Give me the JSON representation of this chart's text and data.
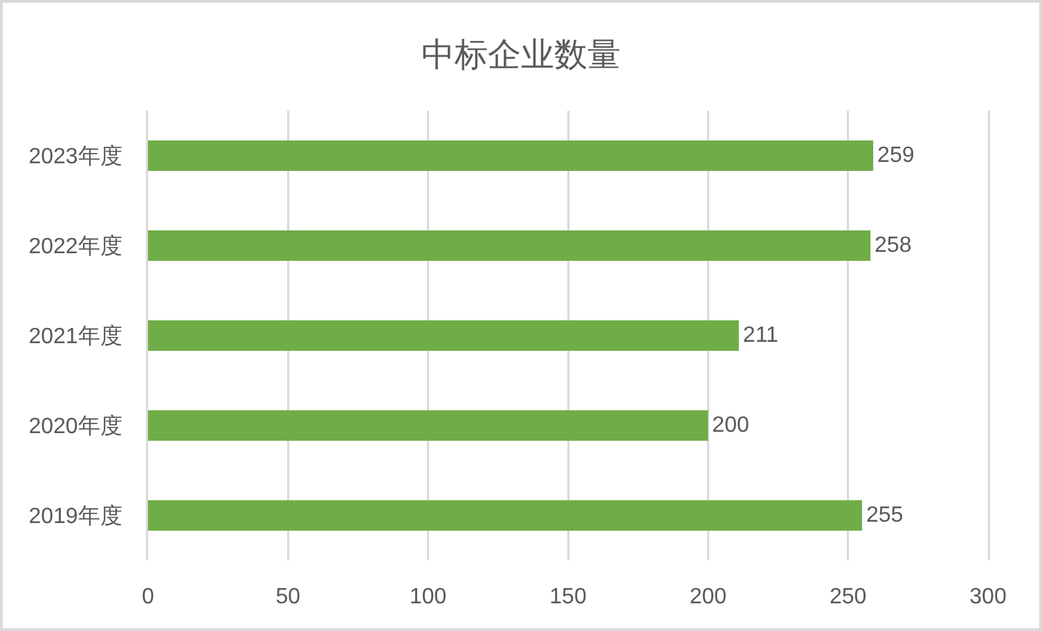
{
  "chart_data": {
    "type": "bar",
    "title": "中标企业数量",
    "orientation": "horizontal",
    "categories": [
      "2023年度",
      "2022年度",
      "2021年度",
      "2020年度",
      "2019年度"
    ],
    "values": [
      259,
      258,
      211,
      200,
      255
    ],
    "color": "#70ad47",
    "xlim": [
      0,
      300
    ],
    "xticks": [
      0,
      50,
      100,
      150,
      200,
      250,
      300
    ],
    "grid": "x",
    "data_labels": true
  }
}
